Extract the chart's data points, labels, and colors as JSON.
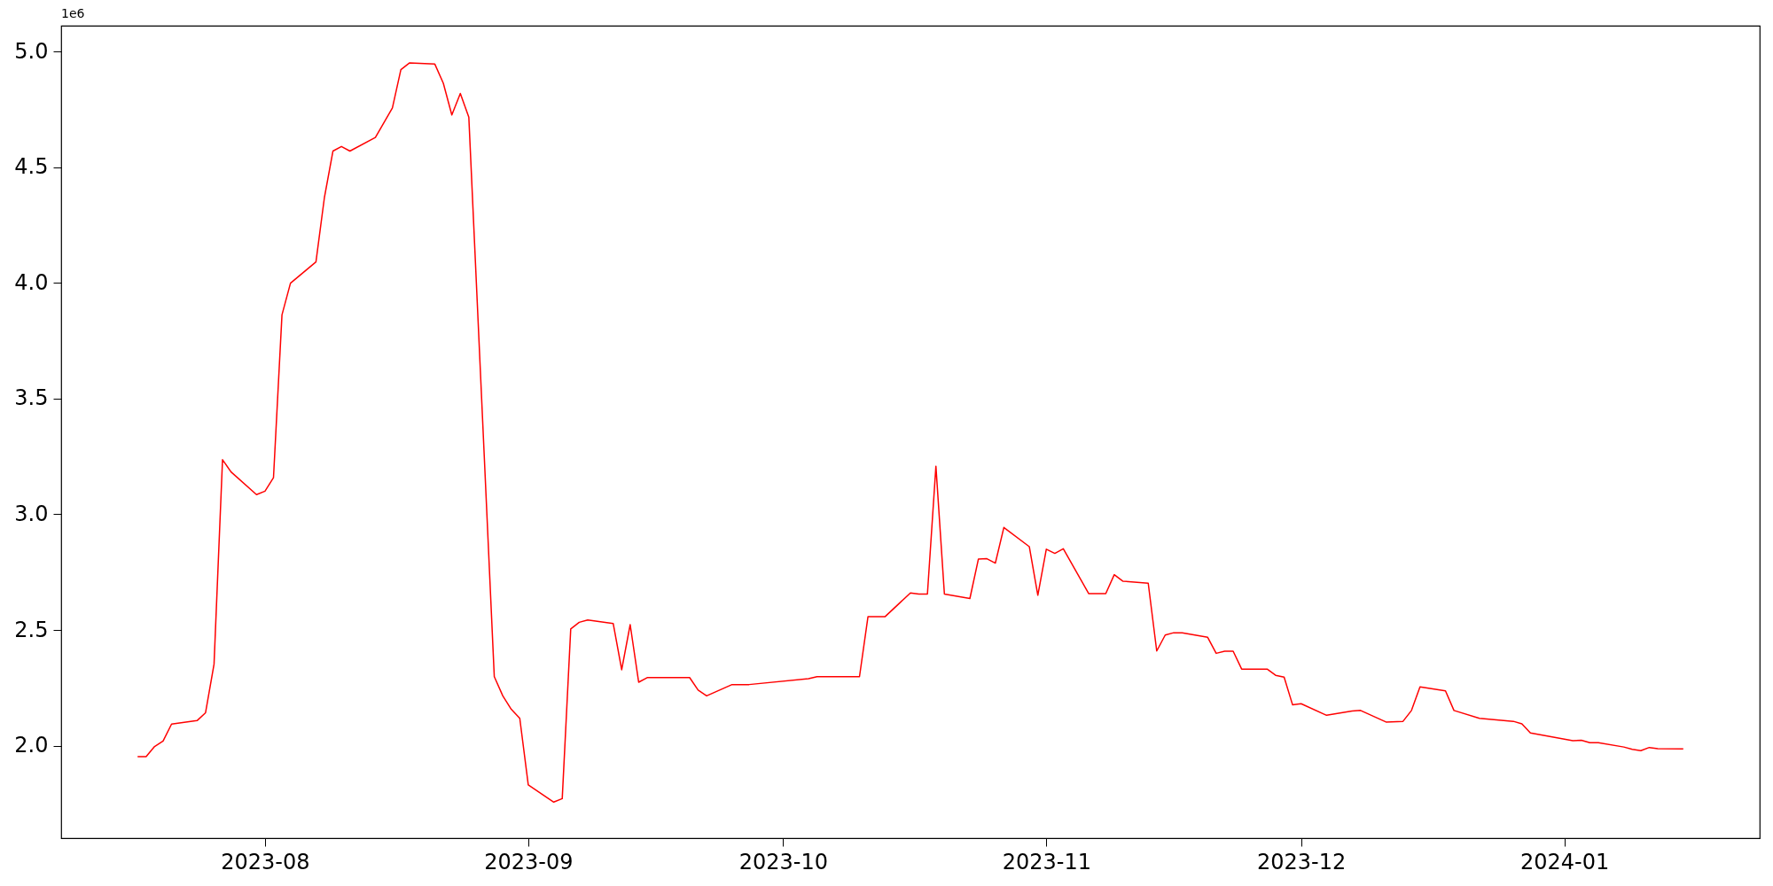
{
  "chart_data": {
    "type": "line",
    "annotations": [
      "1e6"
    ],
    "x": [
      "2023-07-17",
      "2023-07-18",
      "2023-07-19",
      "2023-07-20",
      "2023-07-21",
      "2023-07-24",
      "2023-07-25",
      "2023-07-26",
      "2023-07-27",
      "2023-07-28",
      "2023-07-31",
      "2023-08-01",
      "2023-08-02",
      "2023-08-03",
      "2023-08-04",
      "2023-08-07",
      "2023-08-08",
      "2023-08-09",
      "2023-08-10",
      "2023-08-11",
      "2023-08-14",
      "2023-08-16",
      "2023-08-17",
      "2023-08-18",
      "2023-08-21",
      "2023-08-22",
      "2023-08-23",
      "2023-08-24",
      "2023-08-25",
      "2023-08-28",
      "2023-08-29",
      "2023-08-30",
      "2023-08-31",
      "2023-09-01",
      "2023-09-04",
      "2023-09-05",
      "2023-09-06",
      "2023-09-07",
      "2023-09-08",
      "2023-09-11",
      "2023-09-12",
      "2023-09-13",
      "2023-09-14",
      "2023-09-15",
      "2023-09-20",
      "2023-09-21",
      "2023-09-22",
      "2023-09-25",
      "2023-09-27",
      "2023-10-04",
      "2023-10-05",
      "2023-10-10",
      "2023-10-11",
      "2023-10-13",
      "2023-10-16",
      "2023-10-17",
      "2023-10-18",
      "2023-10-19",
      "2023-10-20",
      "2023-10-23",
      "2023-10-24",
      "2023-10-25",
      "2023-10-26",
      "2023-10-27",
      "2023-10-30",
      "2023-10-31",
      "2023-11-01",
      "2023-11-02",
      "2023-11-03",
      "2023-11-06",
      "2023-11-08",
      "2023-11-09",
      "2023-11-10",
      "2023-11-13",
      "2023-11-14",
      "2023-11-15",
      "2023-11-16",
      "2023-11-17",
      "2023-11-20",
      "2023-11-21",
      "2023-11-22",
      "2023-11-23",
      "2023-11-24",
      "2023-11-27",
      "2023-11-28",
      "2023-11-29",
      "2023-11-30",
      "2023-12-01",
      "2023-12-04",
      "2023-12-07",
      "2023-12-08",
      "2023-12-11",
      "2023-12-13",
      "2023-12-14",
      "2023-12-15",
      "2023-12-18",
      "2023-12-19",
      "2023-12-22",
      "2023-12-26",
      "2023-12-27",
      "2023-12-28",
      "2024-01-02",
      "2024-01-03",
      "2024-01-04",
      "2024-01-05",
      "2024-01-08",
      "2024-01-09",
      "2024-01-10",
      "2024-01-11",
      "2024-01-12",
      "2024-01-15"
    ],
    "series": [
      {
        "color": "#ff0000",
        "values": [
          1.952,
          1.952,
          1.996,
          2.02,
          2.093,
          2.108,
          2.142,
          2.352,
          3.236,
          3.183,
          3.085,
          3.1,
          3.158,
          3.862,
          3.999,
          4.091,
          4.37,
          4.57,
          4.59,
          4.57,
          4.629,
          4.756,
          4.922,
          4.951,
          4.946,
          4.863,
          4.726,
          4.819,
          4.717,
          2.298,
          2.215,
          2.157,
          2.118,
          1.83,
          1.756,
          1.771,
          2.504,
          2.533,
          2.543,
          2.528,
          2.328,
          2.523,
          2.274,
          2.294,
          2.294,
          2.24,
          2.215,
          2.264,
          2.264,
          2.289,
          2.298,
          2.298,
          2.557,
          2.557,
          2.66,
          2.655,
          2.655,
          3.208,
          2.655,
          2.636,
          2.806,
          2.808,
          2.789,
          2.943,
          2.86,
          2.65,
          2.849,
          2.831,
          2.851,
          2.657,
          2.657,
          2.739,
          2.711,
          2.702,
          2.409,
          2.478,
          2.488,
          2.488,
          2.468,
          2.399,
          2.408,
          2.408,
          2.331,
          2.331,
          2.304,
          2.296,
          2.176,
          2.181,
          2.131,
          2.15,
          2.152,
          2.102,
          2.105,
          2.152,
          2.254,
          2.237,
          2.152,
          2.118,
          2.105,
          2.094,
          2.055,
          2.021,
          2.023,
          2.013,
          2.013,
          1.994,
          1.984,
          1.978,
          1.992,
          1.987,
          1.986
        ]
      }
    ],
    "xlim": [
      "2023-07-08",
      "2024-01-24"
    ],
    "xticks": [
      "2023-08",
      "2023-09",
      "2023-10",
      "2023-11",
      "2023-12",
      "2024-01"
    ],
    "ylim": [
      1.6,
      5.112
    ],
    "yticks": [
      {
        "value": 2,
        "label": "2.0"
      },
      {
        "value": 2.5,
        "label": "2.5"
      },
      {
        "value": 3,
        "label": "3.0"
      },
      {
        "value": 3.5,
        "label": "3.5"
      },
      {
        "value": 4,
        "label": "4.0"
      },
      {
        "value": 4.5,
        "label": "4.5"
      },
      {
        "value": 5,
        "label": "5.0"
      }
    ],
    "grid": false,
    "marker": "none",
    "line_style": "solid"
  }
}
